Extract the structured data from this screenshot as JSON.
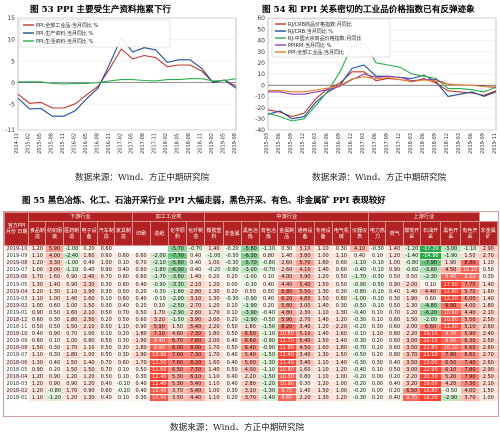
{
  "fig53": {
    "title": "图 53   PPI 主要受生产资料拖累下行",
    "source": "数据来源：Wind、方正中期研究院",
    "chart_data": {
      "type": "line",
      "x": [
        "2014-11",
        "2015-02",
        "2015-05",
        "2015-08",
        "2015-11",
        "2016-02",
        "2016-05",
        "2016-08",
        "2016-11",
        "2017-02",
        "2017-05",
        "2017-08",
        "2017-11",
        "2018-02",
        "2018-05",
        "2018-08",
        "2018-11",
        "2019-02",
        "2019-05",
        "2019-08"
      ],
      "ylim": [
        -11,
        15
      ],
      "yticks": [
        15,
        10,
        5,
        0,
        -5,
        -11
      ],
      "series": [
        {
          "name": "PPI:全部工业品:当月同比 %",
          "color": "#c0392b",
          "values": [
            -2.7,
            -4.8,
            -4.6,
            -5.9,
            -5.9,
            -4.9,
            -2.8,
            -0.8,
            3.3,
            7.8,
            5.5,
            6.3,
            5.8,
            3.7,
            4.1,
            4.1,
            2.7,
            0.1,
            0.6,
            -0.8
          ]
        },
        {
          "name": "PPI:生产资料:当月同比 %",
          "color": "#1f4e9c",
          "values": [
            -3.6,
            -6.1,
            -6.0,
            -7.8,
            -7.8,
            -6.5,
            -3.7,
            -1.2,
            4.4,
            10.4,
            7.1,
            8.1,
            7.6,
            4.7,
            5.3,
            5.3,
            3.3,
            0.0,
            0.6,
            -1.3
          ]
        },
        {
          "name": "PPI:生活资料:当月同比 %",
          "color": "#2eae4a",
          "values": [
            0.2,
            0.2,
            0.2,
            -0.2,
            -0.3,
            -0.2,
            -0.2,
            0.0,
            0.4,
            0.7,
            0.7,
            0.5,
            0.4,
            0.7,
            0.7,
            0.9,
            0.9,
            0.4,
            0.5,
            0.9
          ]
        }
      ]
    }
  },
  "fig54": {
    "title": "图 54   和 PPI 关系密切的工业品价格指数已有反弹迹象",
    "source": "数据来源：Wind、方正中期研究院",
    "chart_data": {
      "type": "line",
      "x": [
        "2015-03",
        "2015-06",
        "2015-09",
        "2015-12",
        "2016-03",
        "2016-06",
        "2016-09",
        "2016-12",
        "2017-03",
        "2017-06",
        "2017-09",
        "2017-12",
        "2018-03",
        "2018-06",
        "2018-09",
        "2018-12",
        "2019-03",
        "2019-06",
        "2019-09",
        "2019-11"
      ],
      "ylim": [
        -40,
        60
      ],
      "yticks": [
        60,
        50,
        40,
        30,
        20,
        10,
        0,
        -10,
        -20,
        -30,
        -40
      ],
      "series": [
        {
          "name": "RJ/CRB商品价格指数:月同比",
          "color": "#c0392b",
          "values": [
            -22,
            -24,
            -28,
            -25,
            -12,
            -3,
            2,
            12,
            12,
            4,
            6,
            5,
            3,
            6,
            2,
            -5,
            -6,
            -7,
            -9,
            -5
          ]
        },
        {
          "name": "RJ/CRB:当月同比 %",
          "color": "#1f4e9c",
          "values": [
            -26,
            -23,
            -30,
            -28,
            -15,
            -6,
            0,
            15,
            18,
            8,
            8,
            7,
            6,
            9,
            3,
            -10,
            -8,
            -6,
            -10,
            -6
          ]
        },
        {
          "name": "RJ:中国大宗商品价格指数:月同比",
          "color": "#2eae4a",
          "values": [
            -25,
            -28,
            -32,
            -30,
            -18,
            -5,
            12,
            35,
            38,
            20,
            18,
            16,
            10,
            8,
            6,
            -3,
            -3,
            -4,
            -6,
            -2
          ]
        },
        {
          "name": "PPIRM:当月同比 %",
          "color": "#8e44ad",
          "values": [
            -6,
            -6,
            -8,
            -8,
            -6,
            -4,
            -1,
            5,
            10,
            7,
            8,
            7,
            4,
            5,
            5,
            1,
            0,
            0,
            -1,
            -2
          ]
        },
        {
          "name": "PPI:全部工业品:当月同比",
          "color": "#e67e22",
          "values": [
            -4.6,
            -4.8,
            -5.9,
            -5.9,
            -4.3,
            -2.6,
            -0.1,
            5.5,
            7.6,
            5.5,
            6.9,
            4.9,
            3.1,
            4.7,
            3.6,
            0.9,
            0.4,
            0.0,
            -1.2,
            -1.4
          ]
        }
      ]
    }
  },
  "fig55": {
    "title": "图 55   黑色冶炼、化工、石油开采行业 PPI 大幅走弱，黑色开采、有色、非金属矿 PPI 表现较好",
    "source": "数据来源：Wind、方正中期研究院",
    "header": {
      "corner": "官方PPI 月份 日期",
      "groups": [
        "下游行业",
        "加工工业类",
        "中游行业",
        "上游行业"
      ],
      "subheaders": [
        "食品制造",
        "纺织服装",
        "医药制造",
        "电子设备",
        "汽车制造",
        "家具制造",
        "印刷",
        "造纸",
        "化学原料",
        "化纤制造",
        "橡胶塑料",
        "非金属",
        "黑色冶炼",
        "有色冶炼",
        "金属制品",
        "通用设备",
        "专用设备",
        "电气机械",
        "仪器仪表",
        "电力热力",
        "燃气",
        "煤炭开采",
        "石油开采",
        "黑色开采",
        "有色开采",
        "非金属矿"
      ]
    },
    "rows": [
      {
        "date": "2019-10",
        "values": [
          "1.20",
          "5.90",
          "-1.00",
          "0.20",
          "0.60",
          "",
          "",
          "",
          "-5.70",
          "-0.70",
          "1.40",
          "-0.20",
          "-5.80",
          "-1.10",
          "0.30",
          "3.10",
          "1.10",
          "0.30",
          "4.10",
          "-0.30",
          "1.40",
          "-1.20",
          "-17.20",
          "-3.00",
          "-1.10",
          "2.90"
        ]
      },
      {
        "date": "2019-09",
        "values": [
          "1.10",
          "4.00",
          "-2.40",
          "1.60",
          "0.60",
          "0.60",
          "0.60",
          "-2.00",
          "-7.70",
          "0.40",
          "-1.00",
          "-0.30",
          "-6.30",
          "0.80",
          "1.40",
          "3.80",
          "1.00",
          "1.10",
          "0.40",
          "0.10",
          "1.20",
          "-1.40",
          "-14.90",
          "-1.90",
          "1.50",
          "2.70"
        ]
      },
      {
        "date": "2019-08",
        "values": [
          "1.20",
          "3.30",
          "-1.00",
          "0.40",
          "1.00",
          "0.10",
          "0.70",
          "-2.10",
          "-5.80",
          "0.40",
          "1.00",
          "-0.30",
          "-5.70",
          "-0.80",
          "2.60",
          "5.70",
          "1.60",
          "0.60",
          "-1.10",
          "-0.10",
          "1.00",
          "-0.80",
          "-7.90",
          "1.90",
          "8.80",
          "1.10"
        ]
      },
      {
        "date": "2019-07",
        "values": [
          "1.00",
          "3.00",
          "-1.10",
          "0.40",
          "0.90",
          "0.40",
          "0.60",
          "-1.80",
          "-6.00",
          "0.40",
          "-0.20",
          "-0.80",
          "-3.00",
          "-0.70",
          "2.60",
          "4.10",
          "1.40",
          "0.60",
          "-0.40",
          "-0.10",
          "0.90",
          "-0.60",
          "-3.80",
          "4.50",
          "10.10",
          "0.50"
        ]
      },
      {
        "date": "2019-06",
        "values": [
          "1.70",
          "1.60",
          "0.90",
          "2.40",
          "0.70",
          "0.60",
          "0.60",
          "-1.70",
          "-3.60",
          "1.40",
          "0.20",
          "0.20",
          "-1.00",
          "0.10",
          "4.00",
          "3.90",
          "1.20",
          "0.50",
          "-1.70",
          "-0.30",
          "0.50",
          "0.50",
          "-2.30",
          "9.40",
          "9.50",
          "0.30"
        ]
      },
      {
        "date": "2019-05",
        "values": [
          "1.30",
          "1.40",
          "0.90",
          "2.30",
          "0.30",
          "0.60",
          "0.40",
          "-0.90",
          "-3.30",
          "2.10",
          "1.20",
          "0.00",
          "-0.30",
          "0.40",
          "4.40",
          "5.40",
          "1.50",
          "0.50",
          "-0.90",
          "-0.50",
          "0.90",
          "2.00",
          "0.10",
          "17.50",
          "7.70",
          "1.40"
        ]
      },
      {
        "date": "2019-04",
        "values": [
          "1.20",
          "1.30",
          "1.10",
          "1.90",
          "0.30",
          "0.50",
          "0.20",
          "-0.30",
          "-1.80",
          "2.80",
          "1.30",
          "0.20",
          "0.50",
          "0.50",
          "6.80",
          "5.50",
          "1.30",
          "0.30",
          "-0.80",
          "-0.10",
          "0.40",
          "1.40",
          "4.40",
          "12.60",
          "5.70",
          "1.60"
        ]
      },
      {
        "date": "2019-03",
        "values": [
          "1.10",
          "1.00",
          "1.40",
          "1.60",
          "0.10",
          "0.60",
          "0.40",
          "-0.10",
          "-2.00",
          "3.10",
          "1.30",
          "-0.30",
          "-0.90",
          "0.40",
          "6.20",
          "4.80",
          "1.50",
          "0.80",
          "-1.00",
          "-0.10",
          "0.30",
          "1.90",
          "0.60",
          "12.20",
          "6.00",
          "1.40"
        ]
      },
      {
        "date": "2019-02",
        "values": [
          "1.00",
          "0.60",
          "1.00",
          "1.50",
          "0.30",
          "0.40",
          "0.20",
          "0.30",
          "-2.50",
          "2.70",
          "1.20",
          "0.10",
          "-1.90",
          "0.20",
          "5.80",
          "3.00",
          "1.40",
          "0.30",
          "-0.50",
          "-0.10",
          "0.50",
          "1.30",
          "-4.80",
          "9.00",
          "4.00",
          "1.80"
        ]
      },
      {
        "date": "2019-01",
        "values": [
          "0.90",
          "0.50",
          "1.60",
          "2.10",
          "0.50",
          "0.70",
          "0.50",
          "1.70",
          "-2.90",
          "2.80",
          "1.70",
          "0.10",
          "-3.90",
          "-0.40",
          "4.80",
          "2.30",
          "1.10",
          "1.30",
          "-0.40",
          "0.10",
          "0.70",
          "1.20",
          "-6.20",
          "10.60",
          "4.40",
          "2.10"
        ]
      },
      {
        "date": "2018-12",
        "values": [
          "0.60",
          "0.30",
          "1.80",
          "2.50",
          "0.20",
          "0.50",
          "0.60",
          "3.20",
          "-1.50",
          "3.90",
          "2.00",
          "0.20",
          "-2.90",
          "-0.50",
          "5.90",
          "2.70",
          "1.40",
          "1.20",
          "-0.30",
          "0.10",
          "0.60",
          "1.50",
          "-2.00",
          "10.80",
          "5.50",
          "2.50"
        ]
      },
      {
        "date": "2018-11",
        "values": [
          "0.50",
          "0.50",
          "1.50",
          "2.10",
          "0.50",
          "1.10",
          "0.90",
          "5.90",
          "1.50",
          "5.40",
          "2.20",
          "0.50",
          "1.80",
          "-1.50",
          "8.20",
          "3.40",
          "1.20",
          "2.20",
          "-0.20",
          "0.30",
          "0.60",
          "2.00",
          "6.60",
          "11.30",
          "5.10",
          "2.60"
        ]
      },
      {
        "date": "2018-10",
        "values": [
          "0.40",
          "0.90",
          "0.70",
          "1.00",
          "0.10",
          "0.20",
          "1.80",
          "7.10",
          "4.60",
          "7.30",
          "1.80",
          "0.50",
          "6.50",
          "-1.10",
          "10.80",
          "5.10",
          "1.40",
          "1.60",
          "-0.10",
          "1.10",
          "0.80",
          "2.20",
          "19.10",
          "9.70",
          "5.90",
          "2.40"
        ]
      },
      {
        "date": "2018-09",
        "values": [
          "0.60",
          "0.10",
          "1.00",
          "0.80",
          "0.50",
          "0.30",
          "1.90",
          "9.40",
          "6.70",
          "7.80",
          "2.00",
          "0.40",
          "6.60",
          "-0.90",
          "11.70",
          "5.40",
          "1.50",
          "1.40",
          "-0.30",
          "0.20",
          "0.60",
          "3.00",
          "20.10",
          "9.90",
          "6.30",
          "2.50"
        ]
      },
      {
        "date": "2018-08",
        "values": [
          "1.50",
          "0.30",
          "1.70",
          "1.10",
          "0.50",
          "0.30",
          "1.80",
          "9.90",
          "8.00",
          "8.00",
          "1.70",
          "0.50",
          "6.40",
          "-0.90",
          "11.60",
          "4.50",
          "1.60",
          "1.80",
          "-0.70",
          "0.20",
          "0.60",
          "3.50",
          "22.80",
          "10.10",
          "6.60",
          "2.60"
        ]
      },
      {
        "date": "2018-07",
        "values": [
          "1.10",
          "0.30",
          "1.80",
          "1.00",
          "0.50",
          "0.30",
          "1.90",
          "10.90",
          "7.60",
          "7.30",
          "1.70",
          "0.40",
          "5.40",
          "-1.50",
          "11.40",
          "3.40",
          "1.30",
          "1.50",
          "-0.50",
          "0.20",
          "0.80",
          "3.70",
          "21.10",
          "7.80",
          "6.60",
          "2.70"
        ]
      },
      {
        "date": "2018-06",
        "values": [
          "1.30",
          "0.40",
          "1.50",
          "1.40",
          "0.70",
          "0.60",
          "1.70",
          "11.50",
          "7.60",
          "8.20",
          "1.60",
          "0.40",
          "5.00",
          "-1.30",
          "11.40",
          "3.40",
          "1.10",
          "1.40",
          "-0.30",
          "0.30",
          "0.40",
          "3.50",
          "23.00",
          "6.50",
          "7.40",
          "2.60"
        ]
      },
      {
        "date": "2018-05",
        "values": [
          "0.90",
          "0.20",
          "1.50",
          "1.50",
          "0.70",
          "0.10",
          "0.50",
          "11.60",
          "6.50",
          "7.70",
          "1.40",
          "0.50",
          "4.00",
          "-1.10",
          "10.80",
          "1.60",
          "1.10",
          "1.20",
          "-0.40",
          "0.10",
          "0.50",
          "3.00",
          "22.90",
          "6.10",
          "7.80",
          "2.90"
        ]
      },
      {
        "date": "2018-04",
        "values": [
          "1.20",
          "0.90",
          "1.20",
          "1.20",
          "0.50",
          "0.10",
          "0.30",
          "12.40",
          "5.30",
          "6.10",
          "1.10",
          "0.40",
          "2.20",
          "-1.50",
          "10.30",
          "0.80",
          "1.10",
          "1.00",
          "-0.20",
          "0.00",
          "0.20",
          "2.20",
          "20.30",
          "5.20",
          "7.90",
          "2.50"
        ]
      },
      {
        "date": "2018-03",
        "values": [
          "1.20",
          "0.90",
          "0.90",
          "1.20",
          "0.40",
          "-0.10",
          "0.40",
          "12.40",
          "5.30",
          "5.40",
          "1.10",
          "0.40",
          "2.80",
          "-1.20",
          "10.90",
          "0.30",
          "1.20",
          "1.00",
          "-0.20",
          "0.00",
          "0.40",
          "3.20",
          "19.00",
          "4.20",
          "7.30",
          "2.10"
        ]
      },
      {
        "date": "2018-02",
        "values": [
          "1.20",
          "-0.80",
          "1.70",
          "0.90",
          "0.60",
          "-0.20",
          "0.40",
          "10.40",
          "3.70",
          "5.40",
          "1.00",
          "0.30",
          "3.10",
          "-1.30",
          "9.70",
          "1.40",
          "1.50",
          "1.00",
          "-0.20",
          "0.00",
          "0.20",
          "6.50",
          "16.80",
          "-0.50",
          "4.00",
          "1.50"
        ]
      },
      {
        "date": "2018-01",
        "values": [
          "1.10",
          "-1.20",
          "1.20",
          "1.30",
          "0.40",
          "0.10",
          "0.30",
          "10.90",
          "3.50",
          "4.40",
          "1.10",
          "0.20",
          "3.70",
          "-1.40",
          "9.60",
          "2.20",
          "1.30",
          "1.20",
          "-0.30",
          "0.20",
          "0.40",
          "9.70",
          "18.20",
          "-2.90",
          "3.70",
          "1.00"
        ]
      }
    ]
  }
}
